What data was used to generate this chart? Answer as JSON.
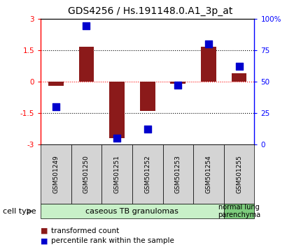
{
  "title": "GDS4256 / Hs.191148.0.A1_3p_at",
  "samples": [
    "GSM501249",
    "GSM501250",
    "GSM501251",
    "GSM501252",
    "GSM501253",
    "GSM501254",
    "GSM501255"
  ],
  "red_values": [
    -0.2,
    1.65,
    -2.7,
    -1.4,
    -0.1,
    1.65,
    0.4
  ],
  "blue_values": [
    30,
    94,
    5,
    12,
    47,
    80,
    62
  ],
  "ylim_left": [
    -3,
    3
  ],
  "ylim_right": [
    0,
    100
  ],
  "yticks_left": [
    -3,
    -1.5,
    0,
    1.5,
    3
  ],
  "yticks_right": [
    0,
    25,
    50,
    75,
    100
  ],
  "ytick_labels_left": [
    "-3",
    "-1.5",
    "0",
    "1.5",
    "3"
  ],
  "ytick_labels_right": [
    "0",
    "25",
    "50",
    "75",
    "100%"
  ],
  "hlines": [
    1.5,
    0.0,
    -1.5
  ],
  "hline_colors": [
    "black",
    "red",
    "black"
  ],
  "hline_styles": [
    "dotted",
    "dotted",
    "dotted"
  ],
  "bar_color": "#8B1A1A",
  "dot_color": "#0000CD",
  "bar_width": 0.5,
  "dot_size": 45,
  "group1_label": "caseous TB granulomas",
  "group2_label": "normal lung\nparenchyma",
  "group1_n": 6,
  "group2_n": 1,
  "cell_type_label": "cell type",
  "legend_red_label": "transformed count",
  "legend_blue_label": "percentile rank within the sample",
  "group1_color": "#c8f0c8",
  "group2_color": "#7dcc7d",
  "xtick_bg_color": "#d4d4d4",
  "bg_color": "#ffffff",
  "title_fontsize": 10,
  "tick_fontsize": 7.5,
  "label_fontsize": 8
}
